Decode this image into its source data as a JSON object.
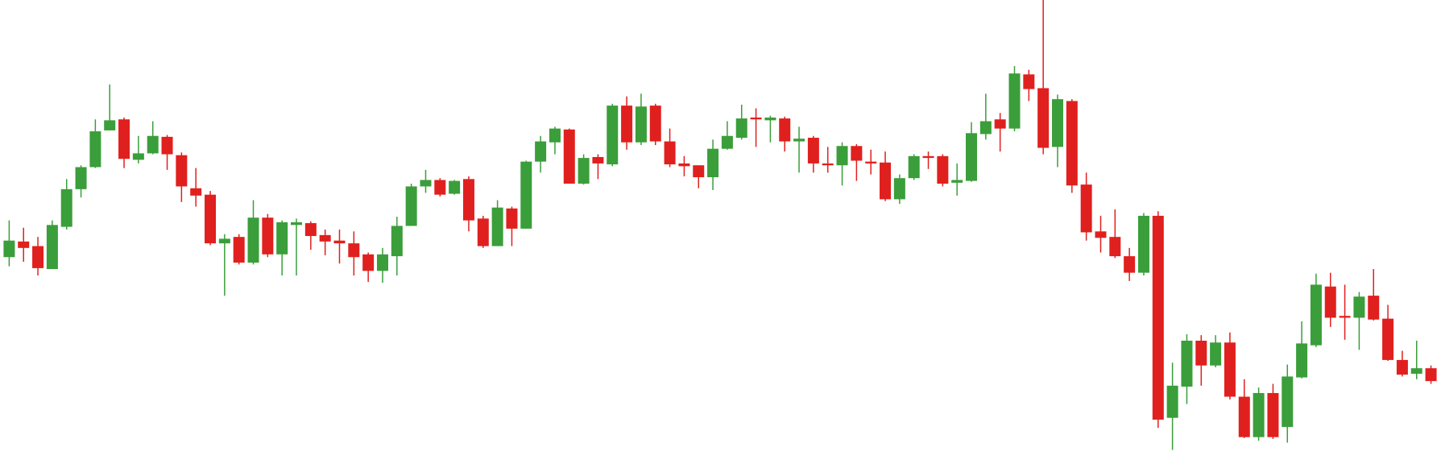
{
  "chart_data": {
    "type": "candlestick",
    "up_color": "#3a9e3a",
    "down_color": "#e0201e",
    "ylim": [
      0,
      514
    ],
    "open": [
      234,
      251,
      246,
      221,
      267,
      308,
      332,
      372,
      384,
      340,
      347,
      365,
      345,
      309,
      302,
      249,
      256,
      228,
      277,
      237,
      269,
      271,
      258,
      252,
      249,
      237,
      219,
      235,
      268,
      311,
      318,
      303,
      319,
      276,
      246,
      287,
      265,
      338,
      359,
      373,
      314,
      343,
      335,
      399,
      359,
      399,
      360,
      336,
      334,
      321,
      352,
      364,
      386,
      383,
      385,
      360,
      364,
      336,
      334,
      355,
      338,
      337,
      297,
      320,
      344,
      344,
      315,
      317,
      368,
      384,
      374,
      433,
      418,
      354,
      404,
      313,
      262,
      256,
      235,
      217,
      279,
      59,
      93,
      143,
      116,
      141,
      82,
      38,
      86,
      49,
      103,
      138,
      202,
      170,
      168,
      192,
      167,
      122,
      107,
      113
    ],
    "high": [
      274,
      266,
      256,
      274,
      319,
      334,
      384,
      422,
      386,
      366,
      382,
      367,
      348,
      331,
      306,
      259,
      259,
      296,
      281,
      274,
      276,
      273,
      264,
      264,
      262,
      239,
      244,
      278,
      314,
      329,
      320,
      318,
      322,
      279,
      296,
      289,
      339,
      366,
      376,
      374,
      346,
      346,
      401,
      409,
      412,
      401,
      374,
      344,
      334,
      362,
      382,
      400,
      396,
      388,
      387,
      376,
      366,
      354,
      359,
      357,
      351,
      349,
      324,
      346,
      349,
      346,
      336,
      381,
      412,
      391,
      442,
      438,
      514,
      411,
      406,
      326,
      279,
      286,
      244,
      282,
      284,
      119,
      150,
      149,
      149,
      152,
      101,
      92,
      96,
      117,
      164,
      216,
      217,
      204,
      196,
      221,
      182,
      132,
      143,
      116
    ],
    "low": [
      224,
      229,
      214,
      221,
      264,
      299,
      331,
      372,
      331,
      336,
      346,
      329,
      294,
      289,
      247,
      192,
      226,
      226,
      234,
      214,
      214,
      242,
      236,
      227,
      214,
      207,
      206,
      214,
      268,
      304,
      300,
      302,
      262,
      244,
      246,
      246,
      265,
      326,
      346,
      314,
      313,
      319,
      333,
      351,
      356,
      356,
      332,
      322,
      309,
      307,
      351,
      362,
      354,
      359,
      349,
      326,
      326,
      326,
      312,
      317,
      324,
      295,
      292,
      318,
      330,
      311,
      301,
      316,
      362,
      349,
      371,
      404,
      346,
      332,
      304,
      252,
      239,
      233,
      208,
      214,
      48,
      24,
      74,
      94,
      114,
      79,
      37,
      34,
      36,
      32,
      102,
      136,
      158,
      144,
      133,
      165,
      121,
      104,
      101,
      96
    ],
    "close": [
      252,
      244,
      222,
      269,
      308,
      332,
      371,
      383,
      341,
      347,
      366,
      346,
      311,
      301,
      249,
      254,
      228,
      277,
      237,
      272,
      272,
      257,
      251,
      249,
      234,
      219,
      237,
      268,
      311,
      318,
      302,
      317,
      274,
      246,
      288,
      265,
      338,
      360,
      374,
      314,
      342,
      336,
      399,
      359,
      398,
      360,
      335,
      333,
      321,
      352,
      366,
      385,
      384,
      386,
      360,
      363,
      336,
      334,
      355,
      339,
      336,
      297,
      320,
      344,
      342,
      314,
      318,
      369,
      382,
      374,
      434,
      417,
      353,
      406,
      312,
      261,
      255,
      235,
      217,
      279,
      57,
      94,
      143,
      116,
      141,
      82,
      38,
      86,
      38,
      104,
      140,
      204,
      168,
      168,
      191,
      166,
      122,
      106,
      113,
      99
    ]
  }
}
